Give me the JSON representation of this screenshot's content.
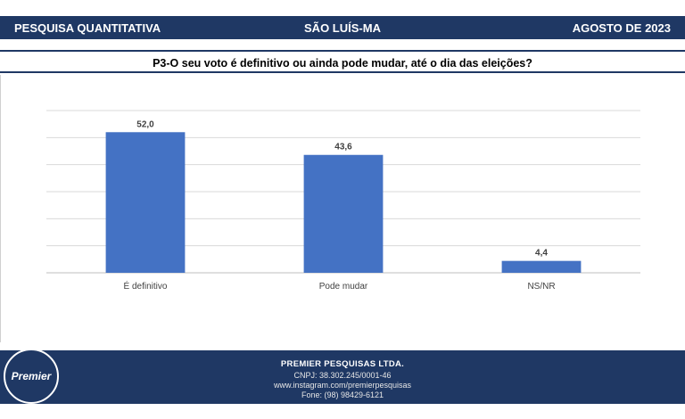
{
  "header": {
    "left": "PESQUISA QUANTITATIVA",
    "center": "SÃO LUÍS-MA",
    "right": "AGOSTO DE 2023"
  },
  "question": "P3-O seu voto é definitivo ou ainda pode mudar, até o dia das eleições?",
  "chart_data": {
    "type": "bar",
    "categories": [
      "É definitivo",
      "Pode mudar",
      "NS/NR"
    ],
    "values": [
      52.0,
      43.6,
      4.4
    ],
    "value_labels": [
      "52,0",
      "43,6",
      "4,4"
    ],
    "ylim": [
      0,
      60
    ],
    "grid": true,
    "bar_color": "#4472c4"
  },
  "footer": {
    "company": "PREMIER PESQUISAS LTDA.",
    "cnpj": "CNPJ: 38.302.245/0001-46",
    "instagram": "www.instagram.com/premierpesquisas",
    "phone": "Fone: (98) 98429-6121"
  },
  "logo": {
    "text": "Premier"
  }
}
